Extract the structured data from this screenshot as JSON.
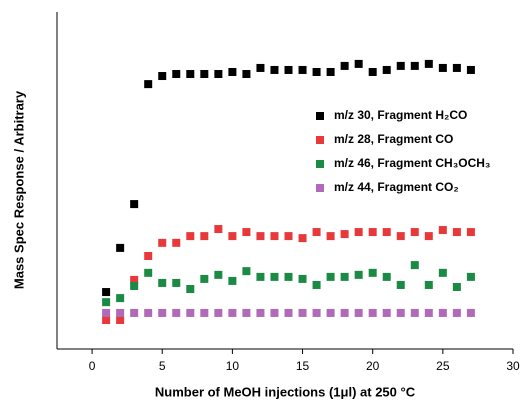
{
  "chart_data": {
    "type": "scatter",
    "x_label": "Number of MeOH injections (1μl) at 250 °C",
    "y_label": "Mass Spec Response / Arbitrary",
    "xlim": [
      -2.5,
      30
    ],
    "xticks": [
      0,
      5,
      10,
      15,
      20,
      25,
      30
    ],
    "ylim": [
      0,
      100
    ],
    "x": [
      1,
      2,
      3,
      4,
      5,
      6,
      7,
      8,
      9,
      10,
      11,
      12,
      13,
      14,
      15,
      16,
      17,
      18,
      19,
      20,
      21,
      22,
      23,
      24,
      25,
      26,
      27
    ],
    "series": [
      {
        "name": "m/z 30, Fragment H₂CO",
        "color": "#000000",
        "values": [
          16.9,
          30,
          43,
          78.6,
          81,
          81.6,
          81.6,
          81.6,
          81.6,
          82.2,
          81.6,
          83.4,
          82.8,
          82.8,
          82.8,
          82.2,
          82.2,
          84,
          84.6,
          82.2,
          82.8,
          84,
          84,
          84.6,
          83.4,
          83.4,
          82.8
        ]
      },
      {
        "name": "m/z 28, Fragment CO",
        "color": "#e8393a",
        "values": [
          8.6,
          8.6,
          20.5,
          27.6,
          31.5,
          31.5,
          33.5,
          33.5,
          35.6,
          33.5,
          34.7,
          33.5,
          33.5,
          33.5,
          32.9,
          34.7,
          33.5,
          34.1,
          34.7,
          34.7,
          34.7,
          33.5,
          34.7,
          33.5,
          35.3,
          34.7,
          34.7
        ]
      },
      {
        "name": "m/z 46, Fragment CH₃OCH₃",
        "color": "#1a8a44",
        "values": [
          13.9,
          15.1,
          18.7,
          22.6,
          19.6,
          19.6,
          17.8,
          20.8,
          22,
          20.2,
          23.1,
          21.4,
          21.4,
          21.4,
          20.8,
          19,
          21.4,
          21.4,
          22,
          22.6,
          21.4,
          19,
          24.9,
          19,
          22.6,
          18.4,
          21.4
        ]
      },
      {
        "name": "m/z 44, Fragment CO₂",
        "color": "#b06ab8",
        "values": [
          10.7,
          10.7,
          10.7,
          10.7,
          10.7,
          10.7,
          10.7,
          10.7,
          10.7,
          10.7,
          10.7,
          10.7,
          10.7,
          10.7,
          10.7,
          10.7,
          10.7,
          10.7,
          10.7,
          10.7,
          10.7,
          10.7,
          10.7,
          10.7,
          10.7,
          10.7,
          10.7
        ]
      }
    ]
  }
}
